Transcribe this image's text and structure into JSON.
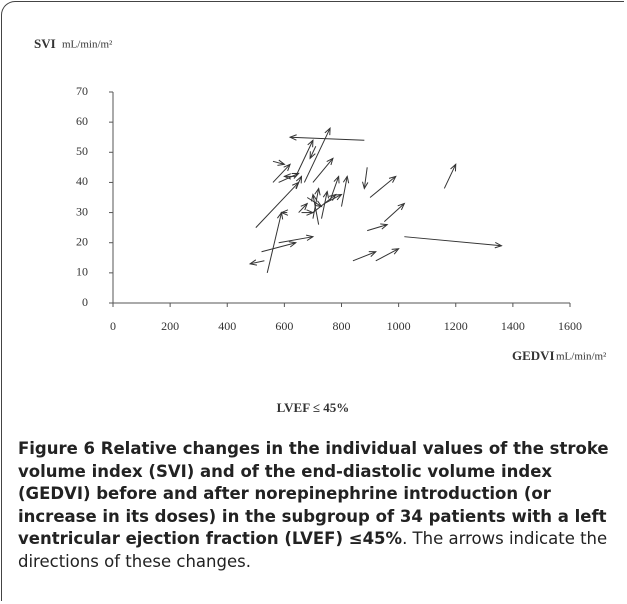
{
  "chart_data": {
    "type": "arrow",
    "y_label": "SVI",
    "y_unit": "mL/min/m²",
    "x_label": "GEDVI",
    "x_unit": "mL/min/m²",
    "subtitle": "LVEF ≤ 45%",
    "xlim": [
      0,
      1600
    ],
    "xticks": [
      0,
      200,
      400,
      600,
      800,
      1000,
      1200,
      1400,
      1600
    ],
    "ylim": [
      0,
      70
    ],
    "yticks": [
      0,
      10,
      20,
      30,
      40,
      50,
      60,
      70
    ],
    "color": "#333333",
    "arrows": {
      "x_start": [
        1020,
        1160,
        900,
        950,
        920,
        840,
        890,
        890,
        880,
        800,
        760,
        740,
        700,
        700,
        650,
        680,
        700,
        720,
        670,
        640,
        560,
        640,
        580,
        500,
        540,
        520,
        580,
        530,
        610,
        660,
        730,
        640,
        710,
        560
      ],
      "y_start": [
        22,
        38,
        35,
        27,
        14,
        14,
        24,
        45,
        54,
        32,
        34,
        33,
        30,
        28,
        30,
        35,
        40,
        26,
        40,
        42,
        40,
        42,
        40,
        25,
        10,
        17,
        20,
        14,
        30,
        30,
        28,
        38,
        52,
        47
      ],
      "x_end": [
        1360,
        1200,
        990,
        1020,
        1000,
        920,
        960,
        880,
        620,
        820,
        790,
        800,
        780,
        720,
        680,
        730,
        770,
        700,
        760,
        700,
        620,
        600,
        650,
        650,
        590,
        640,
        700,
        480,
        590,
        700,
        750,
        660,
        690,
        600
      ],
      "y_end": [
        19,
        46,
        42,
        33,
        18,
        17,
        26,
        38,
        55,
        42,
        42,
        36,
        36,
        38,
        33,
        32,
        48,
        36,
        58,
        54,
        46,
        42,
        43,
        40,
        30,
        20,
        22,
        13,
        30,
        30,
        37,
        42,
        48,
        46
      ]
    }
  },
  "caption": {
    "bold_text": "Figure 6 Relative changes in the individual values of the stroke volume index (SVI) and of the end-diastolic volume index (GEDVI) before and after norepinephrine introduction (or increase in its doses) in the subgroup of 34 patients with a left ventricular ejection fraction (LVEF) ≤45%",
    "text": ". The arrows indicate the directions of these changes."
  }
}
